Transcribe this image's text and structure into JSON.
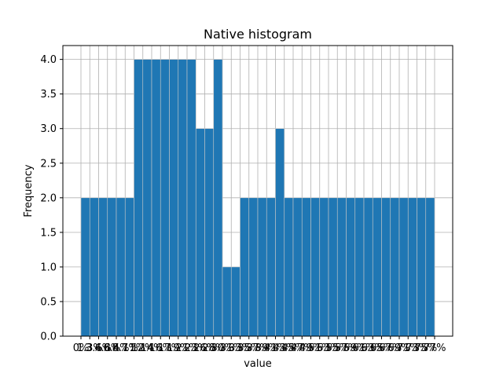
{
  "chart_data": {
    "type": "bar",
    "title": "Native histogram",
    "xlabel": "value",
    "ylabel": "Frequency",
    "ylim": [
      0,
      4.2
    ],
    "yticks": [
      "0.0",
      "0.5",
      "1.0",
      "1.5",
      "2.0",
      "2.5",
      "3.0",
      "3.5",
      "4.0"
    ],
    "grid": true,
    "colors": {
      "bar": "#1f77b4",
      "bar_edge": "#c8c8c8",
      "grid": "#b0b0b0"
    },
    "values": [
      2,
      2,
      2,
      2,
      2,
      2,
      4,
      4,
      4,
      4,
      4,
      4,
      4,
      3,
      3,
      4,
      1,
      1,
      2,
      2,
      2,
      2,
      3,
      2,
      2,
      2,
      2,
      2,
      2,
      2,
      2,
      2,
      2,
      2,
      2,
      2,
      2,
      2,
      2,
      2
    ],
    "xtick_labels": [
      "0%",
      "1.3%",
      "3.6%",
      "4.8%",
      "6.4%",
      "8.7%",
      "11%",
      "12%",
      "14%",
      "16%",
      "17%",
      "19%",
      "21%",
      "23%",
      "26%",
      "28%",
      "30%",
      "31%",
      "33%",
      "35%",
      "37%",
      "39%",
      "41%",
      "43%",
      "45%",
      "47%",
      "49%",
      "51%",
      "53%",
      "55%",
      "57%",
      "59%",
      "61%",
      "63%",
      "65%",
      "67%",
      "69%",
      "71%",
      "73%",
      "75%",
      "77%"
    ]
  }
}
